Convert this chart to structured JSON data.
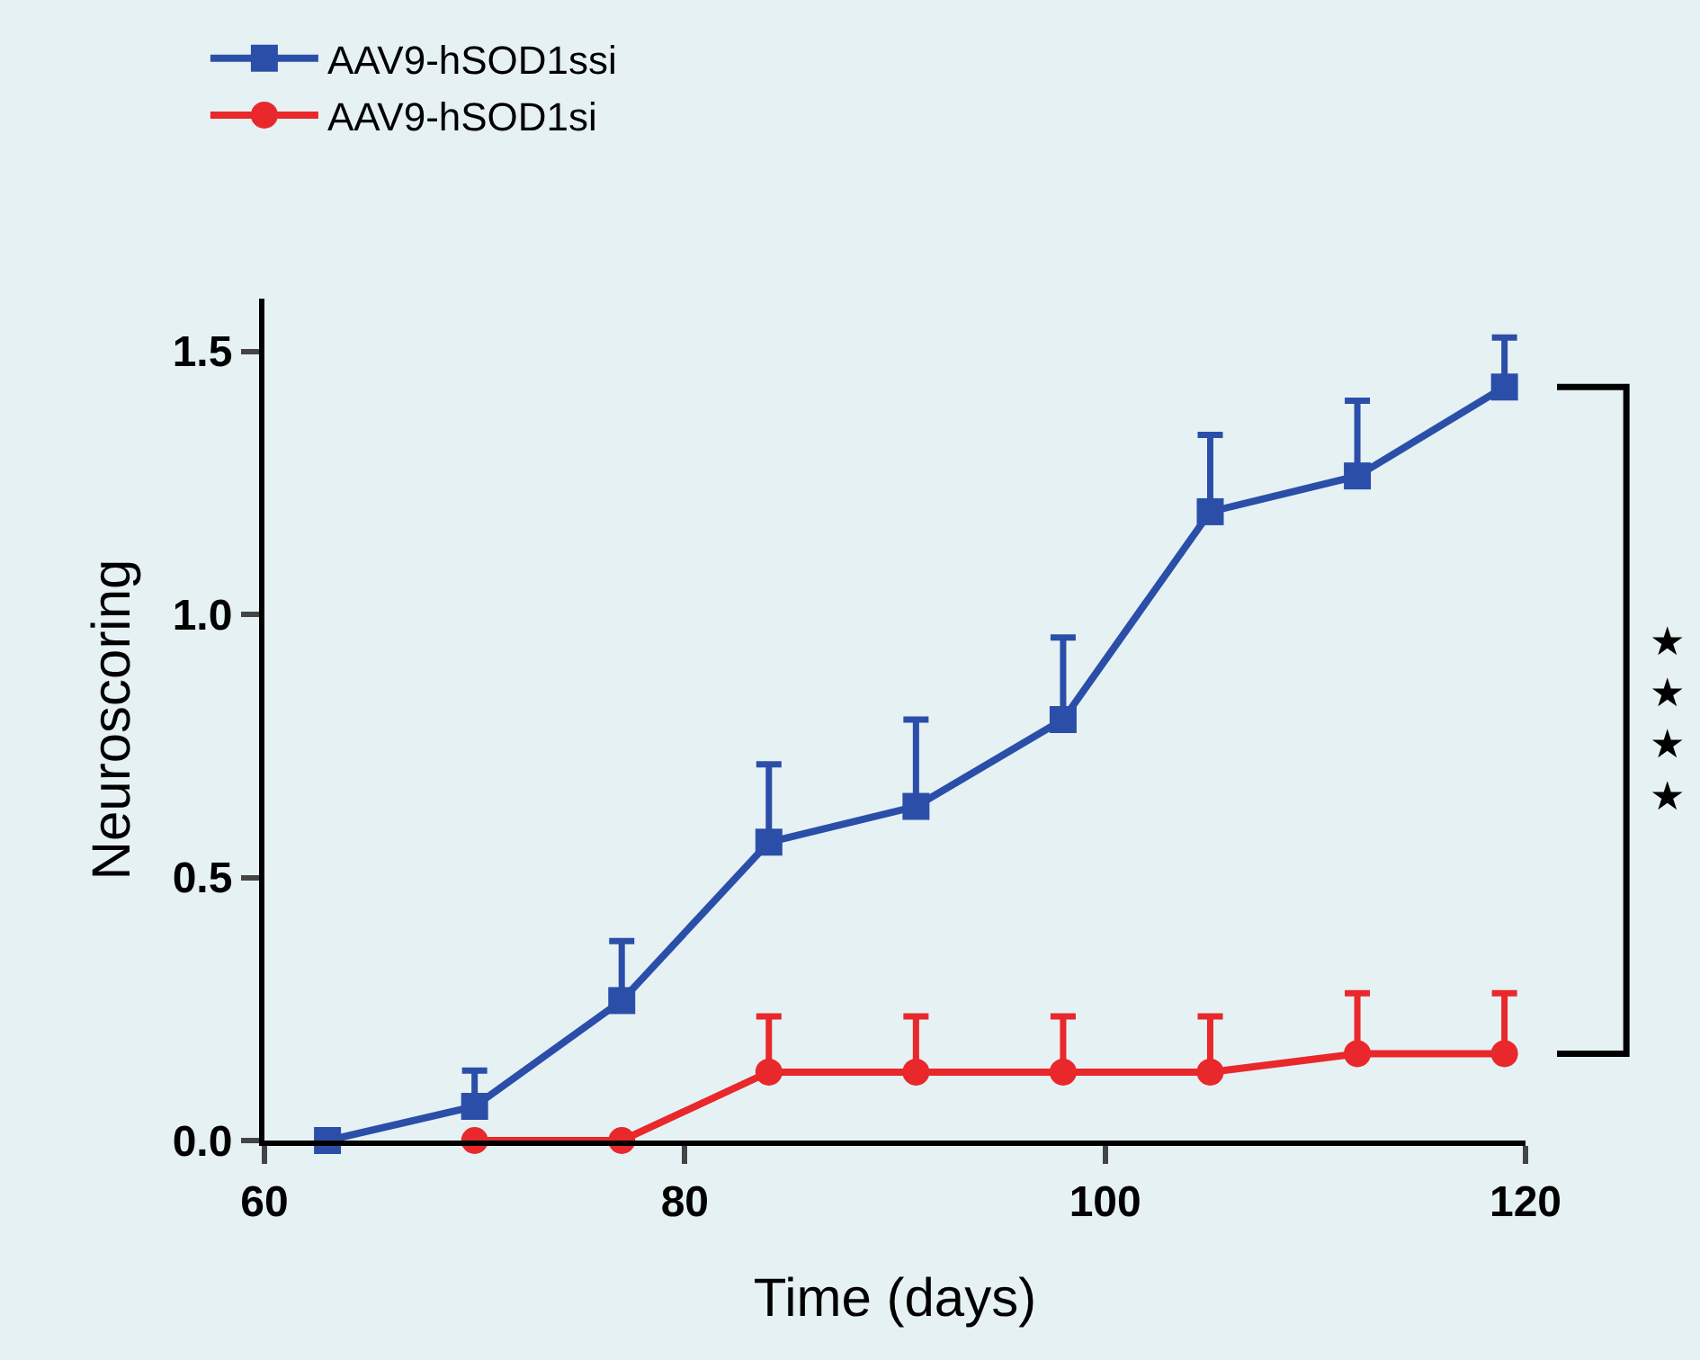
{
  "chart_data": {
    "type": "line",
    "xlabel": "Time (days)",
    "ylabel": "Neuroscoring",
    "series": [
      {
        "name": "AAV9-hSOD1ssi",
        "color": "#2b4fa8",
        "marker": "square",
        "x": [
          63,
          70,
          77,
          84,
          91,
          98,
          105,
          112,
          119
        ],
        "values": [
          0,
          0.065,
          0.266,
          0.567,
          0.635,
          0.8,
          1.195,
          1.263,
          1.432
        ],
        "errors": [
          null,
          [
            0.065,
            0.133
          ],
          [
            0.266,
            0.379
          ],
          [
            0.567,
            0.715
          ],
          [
            0.635,
            0.8
          ],
          [
            0.8,
            0.956
          ],
          [
            1.195,
            1.341
          ],
          [
            1.263,
            1.406
          ],
          [
            1.432,
            1.526
          ]
        ]
      },
      {
        "name": "AAV9-hSOD1si",
        "color": "#e8282b",
        "marker": "circle",
        "x": [
          70,
          77,
          84,
          91,
          98,
          105,
          112,
          119
        ],
        "values": [
          0,
          0,
          0.13,
          0.13,
          0.13,
          0.13,
          0.165,
          0.165
        ],
        "errors": [
          null,
          null,
          [
            0.13,
            0.236
          ],
          [
            0.13,
            0.236
          ],
          [
            0.13,
            0.236
          ],
          [
            0.13,
            0.236
          ],
          [
            0.165,
            0.28
          ],
          [
            0.165,
            0.28
          ]
        ]
      }
    ],
    "xlim": [
      60,
      120
    ],
    "xticks": [
      60,
      80,
      100,
      120
    ],
    "ylim": [
      0,
      1.6
    ],
    "yticks": [
      {
        "value": 0,
        "label": "0.0"
      },
      0.5,
      {
        "value": 1,
        "label": "1.0"
      },
      1.5
    ],
    "grid": false,
    "legend": "top left",
    "line_style": "solid",
    "annotations": [
      "★★★★"
    ]
  }
}
